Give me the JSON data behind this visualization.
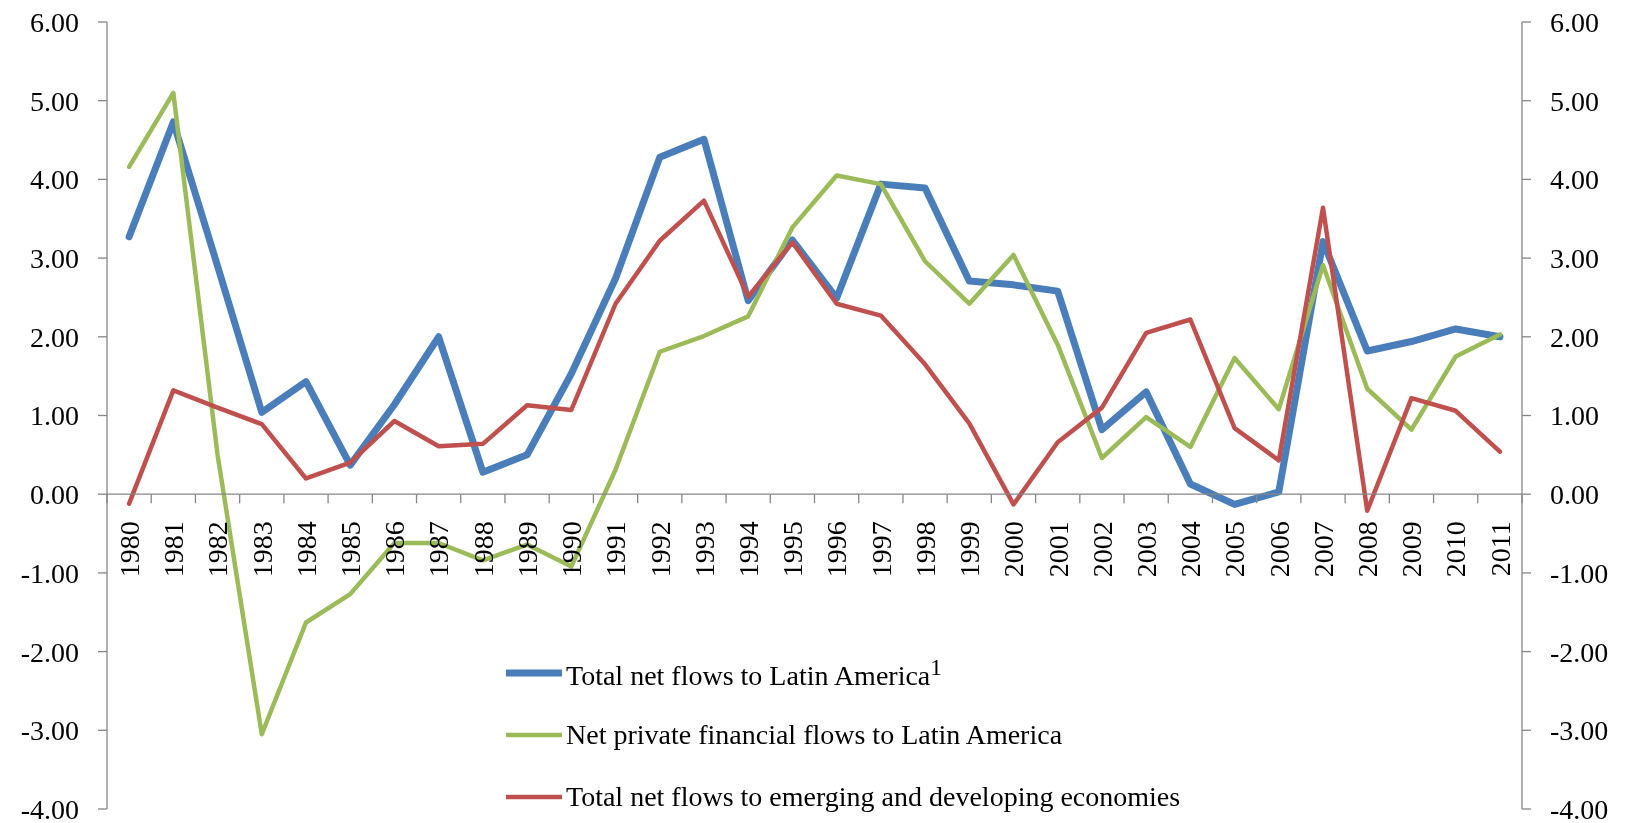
{
  "chart_data": {
    "type": "line",
    "categories": [
      "1980",
      "1981",
      "1982",
      "1983",
      "1984",
      "1985",
      "1986",
      "1987",
      "1988",
      "1989",
      "1990",
      "1991",
      "1992",
      "1993",
      "1994",
      "1995",
      "1996",
      "1997",
      "1998",
      "1999",
      "2000",
      "2001",
      "2002",
      "2003",
      "2004",
      "2005",
      "2006",
      "2007",
      "2008",
      "2009",
      "2010",
      "2011"
    ],
    "series": [
      {
        "name": "Total net flows to Latin America$^{1}$",
        "color": "#4a7ebb",
        "values": [
          3.27,
          4.73,
          2.9,
          1.04,
          1.43,
          0.37,
          1.14,
          2.0,
          0.28,
          0.5,
          1.53,
          2.74,
          4.28,
          4.51,
          2.46,
          3.23,
          2.49,
          3.94,
          3.89,
          2.71,
          2.66,
          2.58,
          0.82,
          1.3,
          0.13,
          -0.13,
          0.03,
          3.21,
          1.82,
          1.94,
          2.1,
          2.0
        ]
      },
      {
        "name": "Net private financial flows to Latin America",
        "color": "#9bbb59",
        "values": [
          4.16,
          5.1,
          0.5,
          -3.05,
          -1.63,
          -1.27,
          -0.62,
          -0.62,
          -0.84,
          -0.64,
          -0.92,
          0.31,
          1.81,
          2.01,
          2.26,
          3.39,
          4.05,
          3.94,
          2.96,
          2.42,
          3.04,
          1.9,
          0.46,
          0.98,
          0.6,
          1.73,
          1.08,
          2.91,
          1.34,
          0.82,
          1.75,
          2.03
        ]
      },
      {
        "name": "Total net flows to emerging and developing economies",
        "color": "#c0504d",
        "values": [
          -0.12,
          1.32,
          1.1,
          0.89,
          0.2,
          0.4,
          0.93,
          0.61,
          0.64,
          1.13,
          1.07,
          2.42,
          3.22,
          3.73,
          2.51,
          3.2,
          2.42,
          2.27,
          1.65,
          0.9,
          -0.13,
          0.66,
          1.1,
          2.05,
          2.22,
          0.84,
          0.43,
          3.64,
          -0.21,
          1.22,
          1.06,
          0.54
        ]
      }
    ],
    "ylim": [
      -4,
      6
    ],
    "yticks": [
      {
        "value": -4,
        "label": "-4.00"
      },
      {
        "value": -3,
        "label": "-3.00"
      },
      {
        "value": -2,
        "label": "-2.00"
      },
      {
        "value": -1,
        "label": "-1.00"
      },
      {
        "value": 0,
        "label": "0.00"
      },
      {
        "value": 1,
        "label": "1.00"
      },
      {
        "value": 2,
        "label": "2.00"
      },
      {
        "value": 3,
        "label": "3.00"
      },
      {
        "value": 4,
        "label": "4.00"
      },
      {
        "value": 5,
        "label": "5.00"
      },
      {
        "value": 6,
        "label": "6.00"
      }
    ],
    "y2lim": [
      -4,
      6
    ],
    "y2ticks": [
      {
        "value": -4,
        "label": "-4.00"
      },
      {
        "value": -3,
        "label": "-3.00"
      },
      {
        "value": -2,
        "label": "-2.00"
      },
      {
        "value": -1,
        "label": "-1.00"
      },
      {
        "value": 0,
        "label": "0.00"
      },
      {
        "value": 1,
        "label": "1.00"
      },
      {
        "value": 2,
        "label": "2.00"
      },
      {
        "value": 3,
        "label": "3.00"
      },
      {
        "value": 4,
        "label": "4.00"
      },
      {
        "value": 5,
        "label": "5.00"
      },
      {
        "value": 6,
        "label": "6.00"
      }
    ],
    "legend": "bottom",
    "marker": "none",
    "line_style": "solid"
  }
}
